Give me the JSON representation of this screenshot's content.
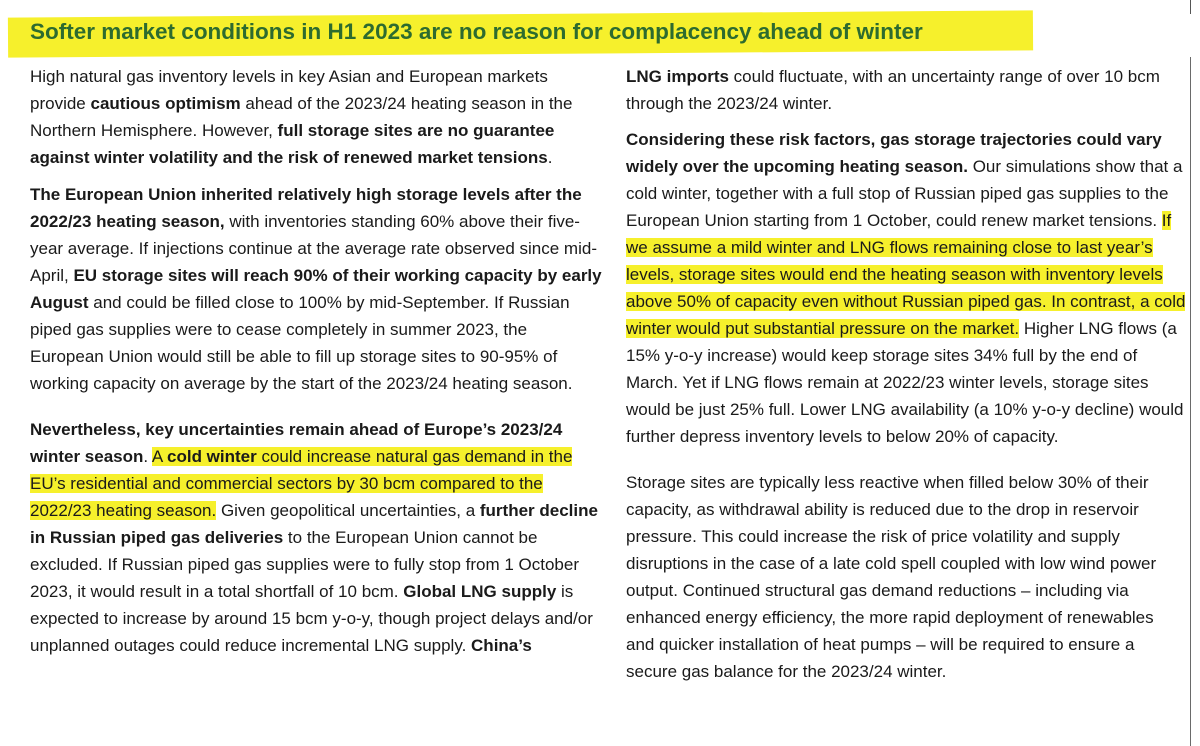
{
  "title": "Softer market conditions in H1 2023 are no reason for complacency ahead of winter",
  "left_column": {
    "p1": {
      "s1": "High natural gas inventory levels in key Asian and European markets provide ",
      "s2": "cautious optimism",
      "s3": " ahead of the 2023/24 heating season in the Northern Hemisphere. However, ",
      "s4": "full storage sites are no guarantee against winter volatility and the risk of renewed market tensions",
      "s5": "."
    },
    "p2": {
      "s1": "The European Union inherited relatively high storage levels after the 2022/23 heating season,",
      "s2": " with inventories standing 60% above their five-year average. If injections continue at the average rate observed since mid-April, ",
      "s3": "EU storage sites will reach 90% of their working capacity by early August",
      "s4": " and could be filled close to 100% by mid-September. If Russian piped gas supplies were to cease completely in summer 2023, the European Union would still be able to fill up storage sites to 90-95% of working capacity on average by the start of the 2023/24 heating season."
    },
    "p3": {
      "s1": "Nevertheless, key uncertainties remain ahead of Europe’s 2023/24 winter season",
      "s2": ". ",
      "s3": "A ",
      "s4": "cold winter",
      "s5": " could increase natural gas demand in the EU’s residential and commercial sectors by 30 bcm compared to the 2022/23 heating season.",
      "s6": " Given geopolitical uncertainties, a ",
      "s7": "further decline in Russian piped gas deliveries",
      "s8": " to the European Union cannot be excluded. If Russian piped gas supplies were to fully stop from 1 October 2023, it would result in a total shortfall of 10 bcm. ",
      "s9": "Global LNG supply",
      "s10": " is expected to increase by around 15 bcm y-o-y, though project delays and/or unplanned outages could reduce incremental LNG supply. ",
      "s11": "China’s"
    }
  },
  "right_column": {
    "p1": {
      "s1": "LNG imports",
      "s2": " could fluctuate, with an uncertainty range of over 10 bcm through the 2023/24 winter."
    },
    "p2": {
      "s1": "Considering these risk factors, gas storage trajectories could vary widely over the upcoming heating season.",
      "s2": " Our simulations show that a cold winter, together with a full stop of Russian piped gas supplies to the European Union starting from 1 October, could renew market tensions. ",
      "s3": "If we assume a mild winter and LNG flows remaining close to last year’s levels, storage sites would end the heating season with inventory levels above 50% of capacity even without Russian piped gas. In contrast, a cold winter would put substantial pressure on the market.",
      "s4": " Higher LNG flows (a 15% y-o-y increase) would keep storage sites 34% full by the end of March. Yet if LNG flows remain at 2022/23 winter levels, storage sites would be just 25% full. Lower LNG availability (a 10% y-o-y decline) would further depress inventory levels to below 20% of capacity."
    },
    "p3": {
      "s1": "Storage sites are typically less reactive when filled below 30% of their capacity, as withdrawal ability is reduced due to the drop in reservoir pressure. This could increase the risk of price volatility and supply disruptions in the case of a late cold spell coupled with low wind power output. Continued structural gas demand reductions – including via enhanced energy efficiency, the more rapid deployment of renewables and quicker installation of heat pumps – will be required to ensure a secure gas balance for the 2023/24 winter."
    }
  },
  "colors": {
    "highlight": "#f6f02c",
    "title_text": "#2d6b2f",
    "body_text": "#1a1a1a"
  }
}
